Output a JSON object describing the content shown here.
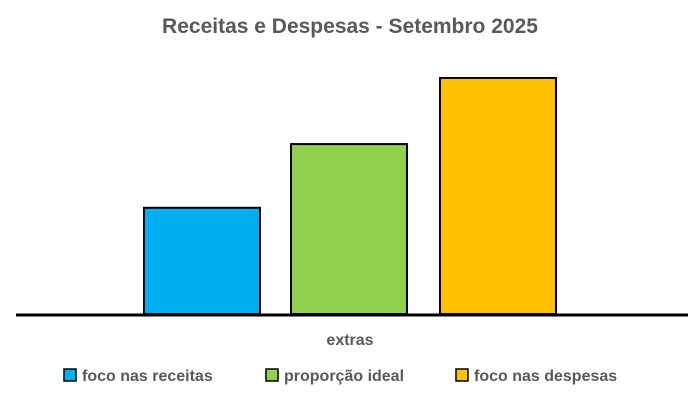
{
  "chart_data": {
    "type": "bar",
    "title": "Receitas e Despesas  - Setembro 2025",
    "categories": [
      "extras"
    ],
    "series": [
      {
        "name": "foco nas receitas",
        "values": [
          0.45
        ],
        "color": "#00B0F0"
      },
      {
        "name": "proporção ideal",
        "values": [
          0.72
        ],
        "color": "#92D050"
      },
      {
        "name": "foco nas despesas",
        "values": [
          1.0
        ],
        "color": "#FFC000"
      }
    ],
    "xlabel": "",
    "ylabel": "",
    "ylim": [
      0,
      1.0
    ],
    "grid": false,
    "legend": "bottom",
    "value_note": "relative bar heights (no axis ticks shown)"
  }
}
